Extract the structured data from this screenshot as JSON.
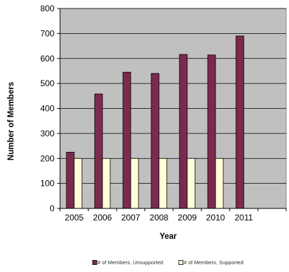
{
  "chart_data": {
    "type": "bar",
    "title": "",
    "xlabel": "Year",
    "ylabel": "Number of Members",
    "categories": [
      "2005",
      "2006",
      "2007",
      "2008",
      "2009",
      "2010",
      "2011"
    ],
    "series": [
      {
        "name": "# of Members, Unsupported",
        "color": "#7b2a4e",
        "values": [
          225,
          458,
          545,
          540,
          616,
          614,
          690
        ]
      },
      {
        "name": "# of Members, Supported",
        "color": "#ffffd8",
        "values": [
          200,
          200,
          200,
          200,
          200,
          200,
          null
        ]
      }
    ],
    "ylim": [
      0,
      800
    ],
    "yticks": [
      0,
      100,
      200,
      300,
      400,
      500,
      600,
      700,
      800
    ],
    "grid": true,
    "plot_background": "#c0c0c0",
    "legend_position": "bottom"
  }
}
